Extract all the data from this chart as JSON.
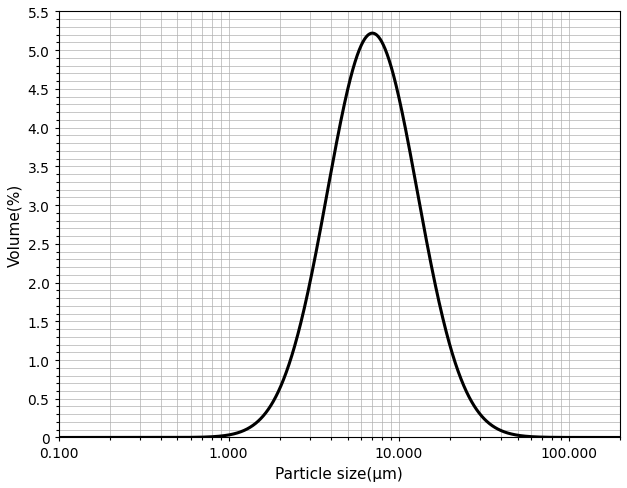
{
  "xlabel": "Particle size(μm)",
  "ylabel": "Volume(%)",
  "xlim_log": [
    0.1,
    200.0
  ],
  "ylim": [
    0,
    5.5
  ],
  "yticks": [
    0,
    0.5,
    1.0,
    1.5,
    2.0,
    2.5,
    3.0,
    3.5,
    4.0,
    4.5,
    5.0,
    5.5
  ],
  "xtick_labels": [
    "0.100",
    "1.000",
    "10.000",
    "100.000"
  ],
  "xtick_values": [
    0.1,
    1.0,
    10.0,
    100.0
  ],
  "curve_color": "#000000",
  "curve_linewidth": 2.2,
  "grid_color": "#b0b0b0",
  "grid_linewidth": 0.5,
  "background_color": "#ffffff",
  "peak_x_log": 0.845,
  "peak_y": 5.22,
  "sigma_log": 0.265,
  "x_start_log": -1.0,
  "x_end_log": 2.3,
  "num_points": 2000,
  "xlabel_fontsize": 11,
  "ylabel_fontsize": 11,
  "tick_fontsize": 10,
  "figsize": [
    6.27,
    4.89
  ],
  "dpi": 100
}
